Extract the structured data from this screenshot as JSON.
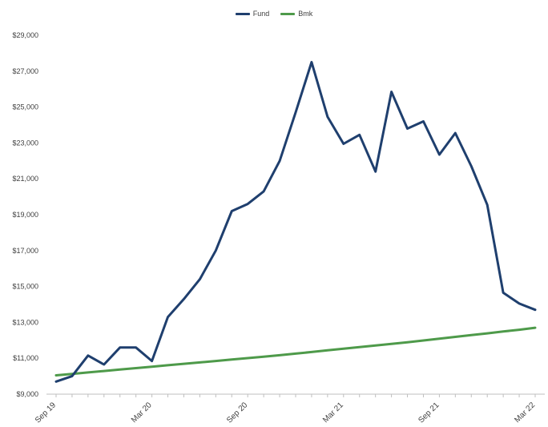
{
  "chart_data": {
    "type": "line",
    "title": "",
    "xlabel": "",
    "ylabel": "",
    "ylim": [
      9000,
      29000
    ],
    "yticks": [
      "$9,000",
      "$11,000",
      "$13,000",
      "$15,000",
      "$17,000",
      "$19,000",
      "$21,000",
      "$23,000",
      "$25,000",
      "$27,000",
      "$29,000"
    ],
    "xticks": [
      "Sep 19",
      "Mar 20",
      "Sep 20",
      "Mar 21",
      "Sep 21",
      "Mar 22"
    ],
    "grid": false,
    "legend_position": "top-center",
    "x": [
      "Sep 19",
      "Oct 19",
      "Nov 19",
      "Dec 19",
      "Jan 20",
      "Feb 20",
      "Mar 20",
      "Apr 20",
      "May 20",
      "Jun 20",
      "Jul 20",
      "Aug 20",
      "Sep 20",
      "Oct 20",
      "Nov 20",
      "Dec 20",
      "Jan 21",
      "Feb 21",
      "Mar 21",
      "Apr 21",
      "May 21",
      "Jun 21",
      "Jul 21",
      "Aug 21",
      "Sep 21",
      "Oct 21",
      "Nov 21",
      "Dec 21",
      "Jan 22",
      "Feb 22",
      "Mar 22"
    ],
    "series": [
      {
        "name": "Fund",
        "color": "#1f3f6e",
        "values": [
          9700,
          10000,
          11150,
          10650,
          11600,
          11600,
          10850,
          13300,
          14300,
          15400,
          17000,
          19200,
          19600,
          20300,
          22000,
          24700,
          27500,
          24450,
          22950,
          23450,
          21400,
          25850,
          23800,
          24200,
          22350,
          23550,
          21700,
          19550,
          14650,
          14050,
          13700
        ]
      },
      {
        "name": "Bmk",
        "color": "#4e9a4a",
        "values": [
          10050,
          10130,
          10210,
          10290,
          10370,
          10450,
          10530,
          10610,
          10690,
          10770,
          10850,
          10930,
          11010,
          11090,
          11170,
          11260,
          11350,
          11440,
          11530,
          11620,
          11710,
          11800,
          11890,
          11990,
          12090,
          12190,
          12290,
          12390,
          12490,
          12590,
          12700
        ]
      }
    ]
  }
}
